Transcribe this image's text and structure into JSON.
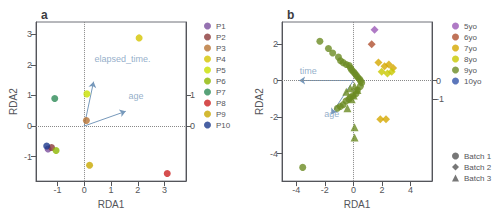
{
  "chart_data": [
    {
      "type": "scatter",
      "title": "a",
      "xlabel": "RDA1",
      "ylabel": "RDA2",
      "xlim": [
        -1.8,
        3.8
      ],
      "ylim": [
        -1.8,
        3.4
      ],
      "xticks": [
        -1,
        0,
        1,
        2,
        3
      ],
      "yticks": [
        -1,
        0,
        1,
        2,
        3
      ],
      "y2lim": [
        -1.8,
        3.4
      ],
      "y2ticks": [
        0,
        1
      ],
      "grid": false,
      "legend": "upper right",
      "marker": "circle",
      "series": [
        {
          "name": "P1",
          "color": "#7B4F9E",
          "points": [
            [
              -1.35,
              -0.75
            ]
          ]
        },
        {
          "name": "P2",
          "color": "#8B3A3A",
          "points": [
            [
              -1.22,
              -0.7
            ]
          ]
        },
        {
          "name": "P3",
          "color": "#B87333",
          "points": [
            [
              0.08,
              0.18
            ]
          ]
        },
        {
          "name": "P4",
          "color": "#D4C400",
          "points": [
            [
              2.05,
              2.88
            ]
          ]
        },
        {
          "name": "P5",
          "color": "#C8E000",
          "points": [
            [
              0.1,
              1.05
            ]
          ]
        },
        {
          "name": "P6",
          "color": "#8DB600",
          "points": [
            [
              -1.05,
              -0.8
            ]
          ]
        },
        {
          "name": "P7",
          "color": "#2E8B57",
          "points": [
            [
              -1.1,
              0.9
            ]
          ]
        },
        {
          "name": "P8",
          "color": "#CC2222",
          "points": [
            [
              3.1,
              -1.55
            ]
          ]
        },
        {
          "name": "P9",
          "color": "#C8A800",
          "points": [
            [
              0.2,
              -1.28
            ]
          ]
        },
        {
          "name": "P10",
          "color": "#1C3A8C",
          "points": [
            [
              -1.4,
              -0.65
            ]
          ]
        }
      ],
      "reference_lines": {
        "x": [
          0
        ],
        "y": [
          0
        ]
      },
      "annotations": [
        {
          "text": "elapsed_time.",
          "x": 0.38,
          "y": 2.05,
          "arrow_from": [
            0.0,
            0.0
          ],
          "arrow_to": [
            0.35,
            1.45
          ],
          "color": "#7799BB"
        },
        {
          "text": "age",
          "x": 1.65,
          "y": 0.82,
          "arrow_from": [
            0.0,
            0.0
          ],
          "arrow_to": [
            1.55,
            0.48
          ],
          "color": "#7799BB"
        }
      ]
    },
    {
      "type": "scatter",
      "title": "b",
      "xlabel": "RDA1",
      "ylabel": "RDA2",
      "xlim": [
        -5.0,
        5.5
      ],
      "ylim": [
        -5.5,
        3.2
      ],
      "xticks": [
        -4,
        -2,
        0,
        2,
        4
      ],
      "yticks": [
        -4,
        -2,
        0,
        2
      ],
      "y2lim": [
        -5.5,
        3.2
      ],
      "y2ticks": [
        0,
        -1
      ],
      "grid": false,
      "legends": [
        {
          "legend": "upper right",
          "entries": [
            {
              "name": "5yo",
              "marker": "circle",
              "color": "#9B59B6"
            },
            {
              "name": "6yo",
              "marker": "circle",
              "color": "#B05030"
            },
            {
              "name": "7yo",
              "marker": "circle",
              "color": "#D4A800"
            },
            {
              "name": "8yo",
              "marker": "circle",
              "color": "#C8C800"
            },
            {
              "name": "9yo",
              "marker": "circle",
              "color": "#6B8B23"
            },
            {
              "name": "10yo",
              "marker": "circle",
              "color": "#3355AA"
            }
          ]
        },
        {
          "legend": "lower right",
          "entries": [
            {
              "name": "Batch 1",
              "marker": "circle",
              "color": "#555555"
            },
            {
              "name": "Batch 2",
              "marker": "diamond",
              "color": "#555555"
            },
            {
              "name": "Batch 3",
              "marker": "triangle",
              "color": "#555555"
            }
          ]
        }
      ],
      "series": [
        {
          "color": "#6B8B23",
          "marker": "circle",
          "points": [
            [
              -2.35,
              2.15
            ],
            [
              -1.75,
              1.75
            ],
            [
              -1.45,
              1.5
            ],
            [
              -1.05,
              1.28
            ],
            [
              -0.9,
              1.08
            ],
            [
              -0.72,
              0.98
            ],
            [
              -0.5,
              0.88
            ],
            [
              -0.3,
              0.82
            ],
            [
              -0.2,
              0.68
            ],
            [
              -0.12,
              0.58
            ],
            [
              0.0,
              0.48
            ],
            [
              0.1,
              0.38
            ],
            [
              0.2,
              0.28
            ],
            [
              0.3,
              0.18
            ],
            [
              0.42,
              0.08
            ],
            [
              0.5,
              -0.02
            ],
            [
              0.58,
              -0.12
            ],
            [
              0.48,
              -0.32
            ],
            [
              0.28,
              -0.52
            ],
            [
              0.18,
              -0.72
            ],
            [
              -0.02,
              -0.82
            ],
            [
              -0.22,
              -0.92
            ],
            [
              -0.32,
              -1.02
            ],
            [
              -0.52,
              -1.12
            ],
            [
              -0.72,
              -1.32
            ],
            [
              -0.92,
              -1.42
            ],
            [
              -1.12,
              -1.52
            ]
          ]
        },
        {
          "color": "#6B8B23",
          "marker": "circle",
          "points": [
            [
              -3.55,
              -4.75
            ]
          ]
        },
        {
          "color": "#6B8B23",
          "marker": "triangle",
          "points": [
            [
              -0.5,
              -0.62
            ],
            [
              -0.22,
              -0.42
            ],
            [
              0.08,
              -0.32
            ],
            [
              0.28,
              -0.52
            ],
            [
              -0.12,
              -1.02
            ],
            [
              0.02,
              -0.82
            ],
            [
              -0.42,
              -1.52
            ],
            [
              0.08,
              -3.12
            ]
          ]
        },
        {
          "color": "#6B8B23",
          "marker": "triangle",
          "points": [
            [
              0.08,
              -2.55
            ]
          ]
        },
        {
          "color": "#D4A800",
          "marker": "diamond",
          "points": [
            [
              1.75,
              0.98
            ],
            [
              2.18,
              0.78
            ],
            [
              2.48,
              0.88
            ],
            [
              2.78,
              0.68
            ]
          ]
        },
        {
          "color": "#C8C800",
          "marker": "diamond",
          "points": [
            [
              1.98,
              0.48
            ],
            [
              2.38,
              0.38
            ],
            [
              2.68,
              0.48
            ]
          ]
        },
        {
          "color": "#D4A800",
          "marker": "diamond",
          "points": [
            [
              1.88,
              -2.12
            ],
            [
              2.28,
              -2.12
            ]
          ]
        },
        {
          "color": "#9B59B6",
          "marker": "diamond",
          "points": [
            [
              1.48,
              2.78
            ]
          ]
        },
        {
          "color": "#B05030",
          "marker": "diamond",
          "points": [
            [
              1.28,
              1.98
            ]
          ]
        }
      ],
      "reference_lines": {
        "x": [
          0
        ],
        "y": [
          0
        ]
      },
      "annotations": [
        {
          "text": "time",
          "x": -3.75,
          "y": 0.25,
          "arrow_from": [
            0.0,
            0.0
          ],
          "arrow_to": [
            -3.8,
            0.0
          ],
          "color": "#7799BB"
        },
        {
          "text": "age",
          "x": -2.05,
          "y": -2.1,
          "arrow_from": [
            0.0,
            0.0
          ],
          "arrow_to": [
            -1.55,
            -1.85
          ],
          "color": "#7799BB"
        }
      ]
    }
  ]
}
